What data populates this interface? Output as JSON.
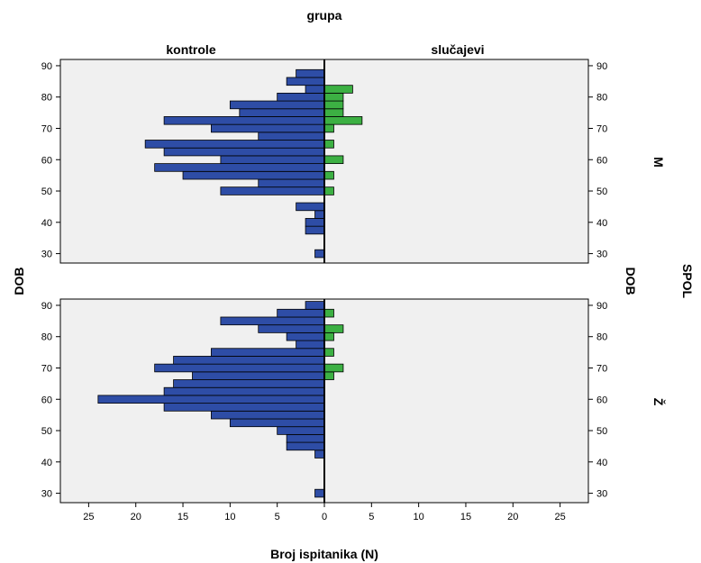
{
  "chart_data": {
    "type": "bar",
    "orientation": "horizontal",
    "title": "grupa",
    "xlabel": "Broj ispitanika (N)",
    "ylabel": "DOB",
    "ylabel_right": "DOB",
    "row_variable": "SPOL",
    "columns": [
      "kontrole",
      "slučajevi"
    ],
    "rows": [
      "M",
      "Ž"
    ],
    "colors": {
      "kontrole": "#2e4da6",
      "slučajevi": "#3cb043",
      "panel_bg": "#f0f0f0"
    },
    "xlim": [
      0,
      28
    ],
    "xticks": [
      0,
      5,
      10,
      15,
      20,
      25
    ],
    "ylim": [
      27,
      92
    ],
    "yticks": [
      30,
      40,
      50,
      60,
      70,
      80,
      90
    ],
    "bin_width": 2.5,
    "panels": [
      {
        "row": "M",
        "kontrole": {
          "ages": [
            30,
            37.5,
            40,
            42.5,
            45,
            50,
            52.5,
            55,
            57.5,
            60,
            62.5,
            65,
            67.5,
            70,
            72.5,
            75,
            77.5,
            80,
            82.5,
            85,
            87.5
          ],
          "counts": [
            1,
            2,
            2,
            1,
            3,
            11,
            7,
            15,
            18,
            11,
            17,
            19,
            7,
            12,
            17,
            9,
            10,
            5,
            2,
            4,
            3
          ]
        },
        "slučajevi": {
          "ages": [
            50,
            55,
            60,
            65,
            70,
            72.5,
            75,
            77.5,
            80,
            82.5
          ],
          "counts": [
            1,
            1,
            2,
            1,
            1,
            4,
            2,
            2,
            2,
            3
          ]
        }
      },
      {
        "row": "Ž",
        "kontrole": {
          "ages": [
            30,
            42.5,
            45,
            47.5,
            50,
            52.5,
            55,
            57.5,
            60,
            62.5,
            65,
            67.5,
            70,
            72.5,
            75,
            77.5,
            80,
            82.5,
            85,
            87.5,
            90
          ],
          "counts": [
            1,
            1,
            4,
            4,
            5,
            10,
            12,
            17,
            24,
            17,
            16,
            14,
            18,
            16,
            12,
            3,
            4,
            7,
            11,
            5,
            2
          ]
        },
        "slučajevi": {
          "ages": [
            67.5,
            70,
            75,
            80,
            82.5,
            87.5
          ],
          "counts": [
            1,
            2,
            1,
            1,
            2,
            1
          ]
        }
      }
    ]
  }
}
